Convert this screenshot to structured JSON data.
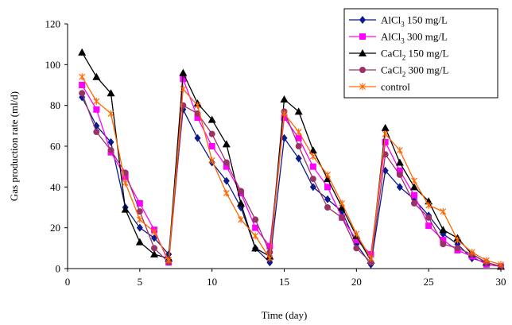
{
  "chart_data": {
    "type": "line",
    "title": "",
    "xlabel": "Time (day)",
    "ylabel": "Gas production rate (ml/d)",
    "xlim": [
      0,
      30
    ],
    "ylim": [
      0,
      120
    ],
    "xticks": [
      0,
      5,
      10,
      15,
      20,
      25,
      30
    ],
    "yticks": [
      0,
      20,
      40,
      60,
      80,
      100,
      120
    ],
    "grid": false,
    "legend_position": "top-right",
    "series": [
      {
        "name": "AlCl3 150 mg/L",
        "legend_main": "AlCl",
        "legend_sub": "3",
        "legend_rest": "150 mg/L",
        "color": "#0a1a8c",
        "marker": "diamond",
        "points": [
          [
            1,
            84
          ],
          [
            2,
            70
          ],
          [
            3,
            62
          ],
          [
            4,
            30
          ],
          [
            5,
            20
          ],
          [
            6,
            15
          ],
          [
            7,
            7
          ],
          [
            8,
            78
          ],
          [
            9,
            64
          ],
          [
            10,
            52
          ],
          [
            11,
            43
          ],
          [
            12,
            30
          ],
          [
            13,
            10
          ],
          [
            14,
            3
          ],
          [
            15,
            64
          ],
          [
            16,
            54
          ],
          [
            17,
            40
          ],
          [
            18,
            34
          ],
          [
            19,
            28
          ],
          [
            20,
            12
          ],
          [
            21,
            2
          ],
          [
            22,
            48
          ],
          [
            23,
            40
          ],
          [
            24,
            34
          ],
          [
            25,
            26
          ],
          [
            26,
            17
          ],
          [
            27,
            12
          ],
          [
            28,
            5
          ],
          [
            29,
            3
          ],
          [
            30,
            1
          ]
        ]
      },
      {
        "name": "AlCl3 300 mg/L",
        "legend_main": "AlCl",
        "legend_sub": "3",
        "legend_rest": "300 mg/L",
        "color": "#ff00ff",
        "marker": "square",
        "points": [
          [
            1,
            90
          ],
          [
            2,
            78
          ],
          [
            3,
            57
          ],
          [
            4,
            45
          ],
          [
            5,
            32
          ],
          [
            6,
            19
          ],
          [
            7,
            3
          ],
          [
            8,
            93
          ],
          [
            9,
            74
          ],
          [
            10,
            60
          ],
          [
            11,
            50
          ],
          [
            12,
            37
          ],
          [
            13,
            20
          ],
          [
            14,
            11
          ],
          [
            15,
            74
          ],
          [
            16,
            64
          ],
          [
            17,
            50
          ],
          [
            18,
            40
          ],
          [
            19,
            25
          ],
          [
            20,
            14
          ],
          [
            21,
            7
          ],
          [
            22,
            62
          ],
          [
            23,
            48
          ],
          [
            24,
            36
          ],
          [
            25,
            21
          ],
          [
            26,
            14
          ],
          [
            27,
            9
          ],
          [
            28,
            6
          ],
          [
            29,
            2
          ],
          [
            30,
            1
          ]
        ]
      },
      {
        "name": "CaCl2 150 mg/L",
        "legend_main": "CaCl",
        "legend_sub": "2",
        "legend_rest": "150 mg/L",
        "color": "#000000",
        "marker": "triangle",
        "points": [
          [
            1,
            106
          ],
          [
            2,
            94
          ],
          [
            3,
            86
          ],
          [
            4,
            29
          ],
          [
            5,
            13
          ],
          [
            6,
            7
          ],
          [
            7,
            5
          ],
          [
            8,
            96
          ],
          [
            9,
            81
          ],
          [
            10,
            73
          ],
          [
            11,
            61
          ],
          [
            12,
            32
          ],
          [
            13,
            10
          ],
          [
            14,
            6
          ],
          [
            15,
            83
          ],
          [
            16,
            77
          ],
          [
            17,
            58
          ],
          [
            18,
            44
          ],
          [
            19,
            30
          ],
          [
            20,
            16
          ],
          [
            21,
            4
          ],
          [
            22,
            69
          ],
          [
            23,
            52
          ],
          [
            24,
            40
          ],
          [
            25,
            33
          ],
          [
            26,
            19
          ],
          [
            27,
            15
          ],
          [
            28,
            7
          ],
          [
            29,
            3
          ],
          [
            30,
            1
          ]
        ]
      },
      {
        "name": "CaCl2 300 mg/L",
        "legend_main": "CaCl",
        "legend_sub": "2",
        "legend_rest": "300 mg/L",
        "color": "#993366",
        "marker": "circle",
        "points": [
          [
            1,
            86
          ],
          [
            2,
            67
          ],
          [
            3,
            58
          ],
          [
            4,
            47
          ],
          [
            5,
            28
          ],
          [
            6,
            10
          ],
          [
            7,
            3
          ],
          [
            8,
            80
          ],
          [
            9,
            76
          ],
          [
            10,
            66
          ],
          [
            11,
            52
          ],
          [
            12,
            38
          ],
          [
            13,
            24
          ],
          [
            14,
            8
          ],
          [
            15,
            77
          ],
          [
            16,
            60
          ],
          [
            17,
            44
          ],
          [
            18,
            30
          ],
          [
            19,
            25
          ],
          [
            20,
            10
          ],
          [
            21,
            3
          ],
          [
            22,
            56
          ],
          [
            23,
            46
          ],
          [
            24,
            32
          ],
          [
            25,
            25
          ],
          [
            26,
            12
          ],
          [
            27,
            10
          ],
          [
            28,
            7
          ],
          [
            29,
            3
          ],
          [
            30,
            1
          ]
        ]
      },
      {
        "name": "control",
        "legend_main": "control",
        "legend_sub": "",
        "legend_rest": "",
        "color": "#ff6600",
        "marker": "asterisk",
        "points": [
          [
            1,
            94
          ],
          [
            2,
            82
          ],
          [
            3,
            76
          ],
          [
            4,
            42
          ],
          [
            5,
            24
          ],
          [
            6,
            18
          ],
          [
            7,
            4
          ],
          [
            8,
            88
          ],
          [
            9,
            80
          ],
          [
            10,
            53
          ],
          [
            11,
            37
          ],
          [
            12,
            24
          ],
          [
            13,
            16
          ],
          [
            14,
            5
          ],
          [
            15,
            76
          ],
          [
            16,
            67
          ],
          [
            17,
            55
          ],
          [
            18,
            46
          ],
          [
            19,
            32
          ],
          [
            20,
            17
          ],
          [
            21,
            5
          ],
          [
            22,
            66
          ],
          [
            23,
            58
          ],
          [
            24,
            43
          ],
          [
            25,
            31
          ],
          [
            26,
            28
          ],
          [
            27,
            14
          ],
          [
            28,
            8
          ],
          [
            29,
            4
          ],
          [
            30,
            2
          ]
        ]
      }
    ]
  }
}
